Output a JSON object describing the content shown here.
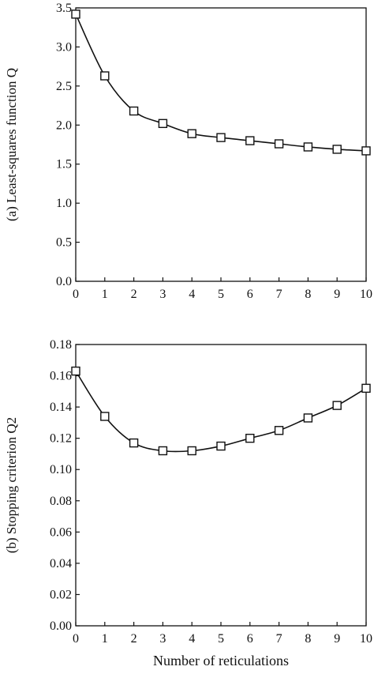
{
  "chart_data": [
    {
      "type": "line",
      "panel": "a",
      "ylabel": "(a) Least-squares function Q",
      "xlabel": "",
      "x": [
        0,
        1,
        2,
        3,
        4,
        5,
        6,
        7,
        8,
        9,
        10
      ],
      "xlim": [
        0,
        10
      ],
      "ylim": [
        0,
        3.5
      ],
      "x_ticks": [
        "0",
        "1",
        "2",
        "3",
        "4",
        "5",
        "6",
        "7",
        "8",
        "9",
        "10"
      ],
      "y_ticks": [
        "0.0",
        "0.5",
        "1.0",
        "1.5",
        "2.0",
        "2.5",
        "3.0",
        "3.5"
      ],
      "series": [
        {
          "values": [
            3.42,
            2.63,
            2.18,
            2.02,
            1.89,
            1.84,
            1.8,
            1.76,
            1.72,
            1.69,
            1.67
          ]
        }
      ],
      "marker": "open-square",
      "grid": false,
      "legend": "none"
    },
    {
      "type": "line",
      "panel": "b",
      "ylabel": "(b) Stopping criterion Q2",
      "xlabel": "Number of reticulations",
      "x": [
        0,
        1,
        2,
        3,
        4,
        5,
        6,
        7,
        8,
        9,
        10
      ],
      "xlim": [
        0,
        10
      ],
      "ylim": [
        0,
        0.18
      ],
      "x_ticks": [
        "0",
        "1",
        "2",
        "3",
        "4",
        "5",
        "6",
        "7",
        "8",
        "9",
        "10"
      ],
      "y_ticks": [
        "0.00",
        "0.02",
        "0.04",
        "0.06",
        "0.08",
        "0.10",
        "0.12",
        "0.14",
        "0.16",
        "0.18"
      ],
      "series": [
        {
          "values": [
            0.163,
            0.134,
            0.117,
            0.112,
            0.112,
            0.115,
            0.12,
            0.125,
            0.133,
            0.141,
            0.152
          ]
        }
      ],
      "marker": "open-square",
      "grid": false,
      "legend": "none"
    }
  ]
}
